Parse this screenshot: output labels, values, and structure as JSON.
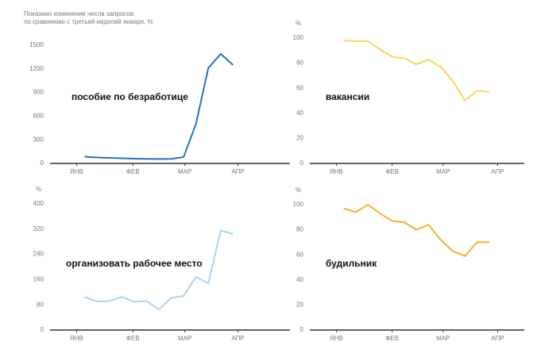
{
  "chart_data": [
    {
      "type": "line",
      "note": [
        "Показано изменение числа запросов",
        "по сравнению с третьей неделей января, %"
      ],
      "annotation": "пособие по безработице",
      "color": "#2a6ebb",
      "x": [
        0,
        1,
        2,
        3,
        4,
        5,
        6,
        7,
        8,
        9,
        10,
        11,
        12
      ],
      "values": [
        85,
        75,
        70,
        65,
        60,
        58,
        56,
        58,
        80,
        500,
        1210,
        1390,
        1250
      ],
      "xlim": [
        -2.8,
        16.6
      ],
      "xticks": [
        {
          "value": -0.65,
          "label": "ЯНВ"
        },
        {
          "value": 3.9,
          "label": "ФЕВ"
        },
        {
          "value": 8.1,
          "label": "МАР"
        },
        {
          "value": 12.4,
          "label": "АПР"
        }
      ],
      "ylim": [
        0,
        1500
      ],
      "yticks": [
        0,
        300,
        600,
        900,
        1200,
        1500
      ]
    },
    {
      "type": "line",
      "ylabel": "%",
      "annotation": "вакансии",
      "color": "#fcd65a",
      "x": [
        0,
        1,
        2,
        3,
        4,
        5,
        6,
        7,
        8,
        9,
        10,
        11,
        12
      ],
      "values": [
        98,
        97.5,
        97.5,
        91,
        85,
        84,
        79,
        83,
        77,
        66,
        50,
        58,
        57
      ],
      "xlim": [
        -2.8,
        14.9
      ],
      "xticks": [
        {
          "value": -0.6,
          "label": "ЯНВ"
        },
        {
          "value": 4,
          "label": "ФЕВ"
        },
        {
          "value": 8.2,
          "label": "МАР"
        },
        {
          "value": 12.7,
          "label": "АПР"
        }
      ],
      "ylim": [
        0,
        100
      ],
      "yticks": [
        0,
        20,
        40,
        60,
        80,
        100
      ]
    },
    {
      "type": "line",
      "ylabel": "%",
      "annotation": "организовать рабочее место",
      "color": "#a8d4f2",
      "x": [
        0,
        1,
        2,
        3,
        4,
        5,
        6,
        7,
        8,
        9,
        10,
        11,
        12
      ],
      "values": [
        105,
        90,
        92,
        105,
        90,
        92,
        65,
        102,
        108,
        168,
        148,
        315,
        305
      ],
      "xlim": [
        -2.8,
        16.6
      ],
      "xticks": [
        {
          "value": -0.65,
          "label": "ЯНВ"
        },
        {
          "value": 3.9,
          "label": "ФЕВ"
        },
        {
          "value": 8.1,
          "label": "МАР"
        },
        {
          "value": 12.4,
          "label": "АПР"
        }
      ],
      "ylim": [
        0,
        400
      ],
      "yticks": [
        0,
        80,
        160,
        240,
        320,
        400
      ]
    },
    {
      "type": "line",
      "ylabel": "%",
      "annotation": "будильник",
      "color": "#f4b226",
      "x": [
        0,
        1,
        2,
        3,
        4,
        5,
        6,
        7,
        8,
        9,
        10,
        11,
        12
      ],
      "values": [
        97,
        94,
        100,
        93,
        87,
        86,
        80,
        84,
        72,
        63,
        59,
        70,
        70
      ],
      "xlim": [
        -2.8,
        14.9
      ],
      "xticks": [
        {
          "value": -0.6,
          "label": "ЯНВ"
        },
        {
          "value": 4,
          "label": "ФЕВ"
        },
        {
          "value": 8.2,
          "label": "МАР"
        },
        {
          "value": 12.7,
          "label": "АПР"
        }
      ],
      "ylim": [
        0,
        100
      ],
      "yticks": [
        0,
        20,
        40,
        60,
        80,
        100
      ]
    }
  ]
}
